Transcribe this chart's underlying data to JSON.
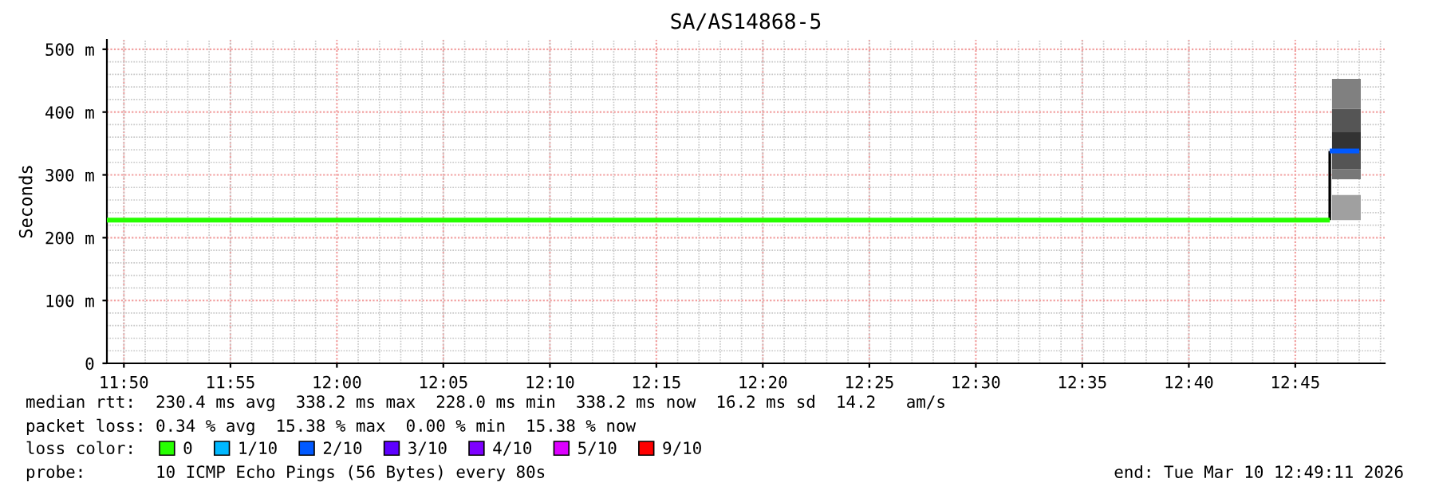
{
  "chart_data": {
    "type": "line",
    "title": "SA/AS14868-5",
    "ylabel": "Seconds",
    "xlim": [
      11.82,
      12.82
    ],
    "ylim": [
      0,
      515
    ],
    "xticks": [
      {
        "value": 11.8333,
        "label": "11:50"
      },
      {
        "value": 11.9167,
        "label": "11:55"
      },
      {
        "value": 12.0,
        "label": "12:00"
      },
      {
        "value": 12.0833,
        "label": "12:05"
      },
      {
        "value": 12.1667,
        "label": "12:10"
      },
      {
        "value": 12.25,
        "label": "12:15"
      },
      {
        "value": 12.3333,
        "label": "12:20"
      },
      {
        "value": 12.4167,
        "label": "12:25"
      },
      {
        "value": 12.5,
        "label": "12:30"
      },
      {
        "value": 12.5833,
        "label": "12:35"
      },
      {
        "value": 12.6667,
        "label": "12:40"
      },
      {
        "value": 12.75,
        "label": "12:45"
      }
    ],
    "yticks": [
      0,
      {
        "value": 100,
        "label": "100 m"
      },
      {
        "value": 200,
        "label": "200 m"
      },
      {
        "value": 300,
        "label": "300 m"
      },
      {
        "value": 400,
        "label": "400 m"
      },
      {
        "value": 500,
        "label": "500 m"
      }
    ],
    "grid": true,
    "legend": "bottom",
    "legend_title": "loss color:",
    "series": [
      {
        "type": "bar",
        "x": [
          12.79
        ],
        "base": [
          228
        ],
        "values": [
          40
        ],
        "color": "#a0a0a0"
      },
      {
        "type": "bar",
        "x": [
          12.79
        ],
        "base": [
          293
        ],
        "values": [
          16
        ],
        "color": "#777777"
      },
      {
        "type": "bar",
        "x": [
          12.79
        ],
        "base": [
          309
        ],
        "values": [
          29
        ],
        "color": "#555555"
      },
      {
        "type": "bar",
        "x": [
          12.79
        ],
        "base": [
          338
        ],
        "values": [
          30
        ],
        "color": "#333333"
      },
      {
        "type": "bar",
        "x": [
          12.79
        ],
        "base": [
          368
        ],
        "values": [
          37
        ],
        "color": "#555555"
      },
      {
        "type": "bar",
        "x": [
          12.79
        ],
        "base": [
          405
        ],
        "values": [
          48
        ],
        "color": "#808080"
      },
      {
        "color": "#000000",
        "x": [
          12.777,
          12.777
        ],
        "values": [
          228,
          338
        ]
      },
      {
        "name": "0",
        "color": "#26ff00",
        "x": [
          11.82,
          12.777
        ],
        "values": [
          228,
          228
        ]
      },
      {
        "name": "1/10",
        "color": "#00b8ff"
      },
      {
        "name": "2/10",
        "color": "#0059ff",
        "x": [
          12.777,
          12.8
        ],
        "values": [
          338,
          338
        ]
      },
      {
        "name": "3/10",
        "color": "#5e00ff"
      },
      {
        "name": "4/10",
        "color": "#7e00ff"
      },
      {
        "name": "5/10",
        "color": "#dd00ff"
      },
      {
        "name": "9/10",
        "color": "#ff0000"
      }
    ],
    "annotations": [
      "median rtt:  230.4 ms avg  338.2 ms max  228.0 ms min  338.2 ms now  16.2 ms sd  14.2   am/s",
      "packet loss: 0.34 % avg  15.38 % max  0.00 % min  15.38 % now",
      "probe:       10 ICMP Echo Pings (56 Bytes) every 80s",
      "end: Tue Mar 10 12:49:11 2026"
    ]
  }
}
